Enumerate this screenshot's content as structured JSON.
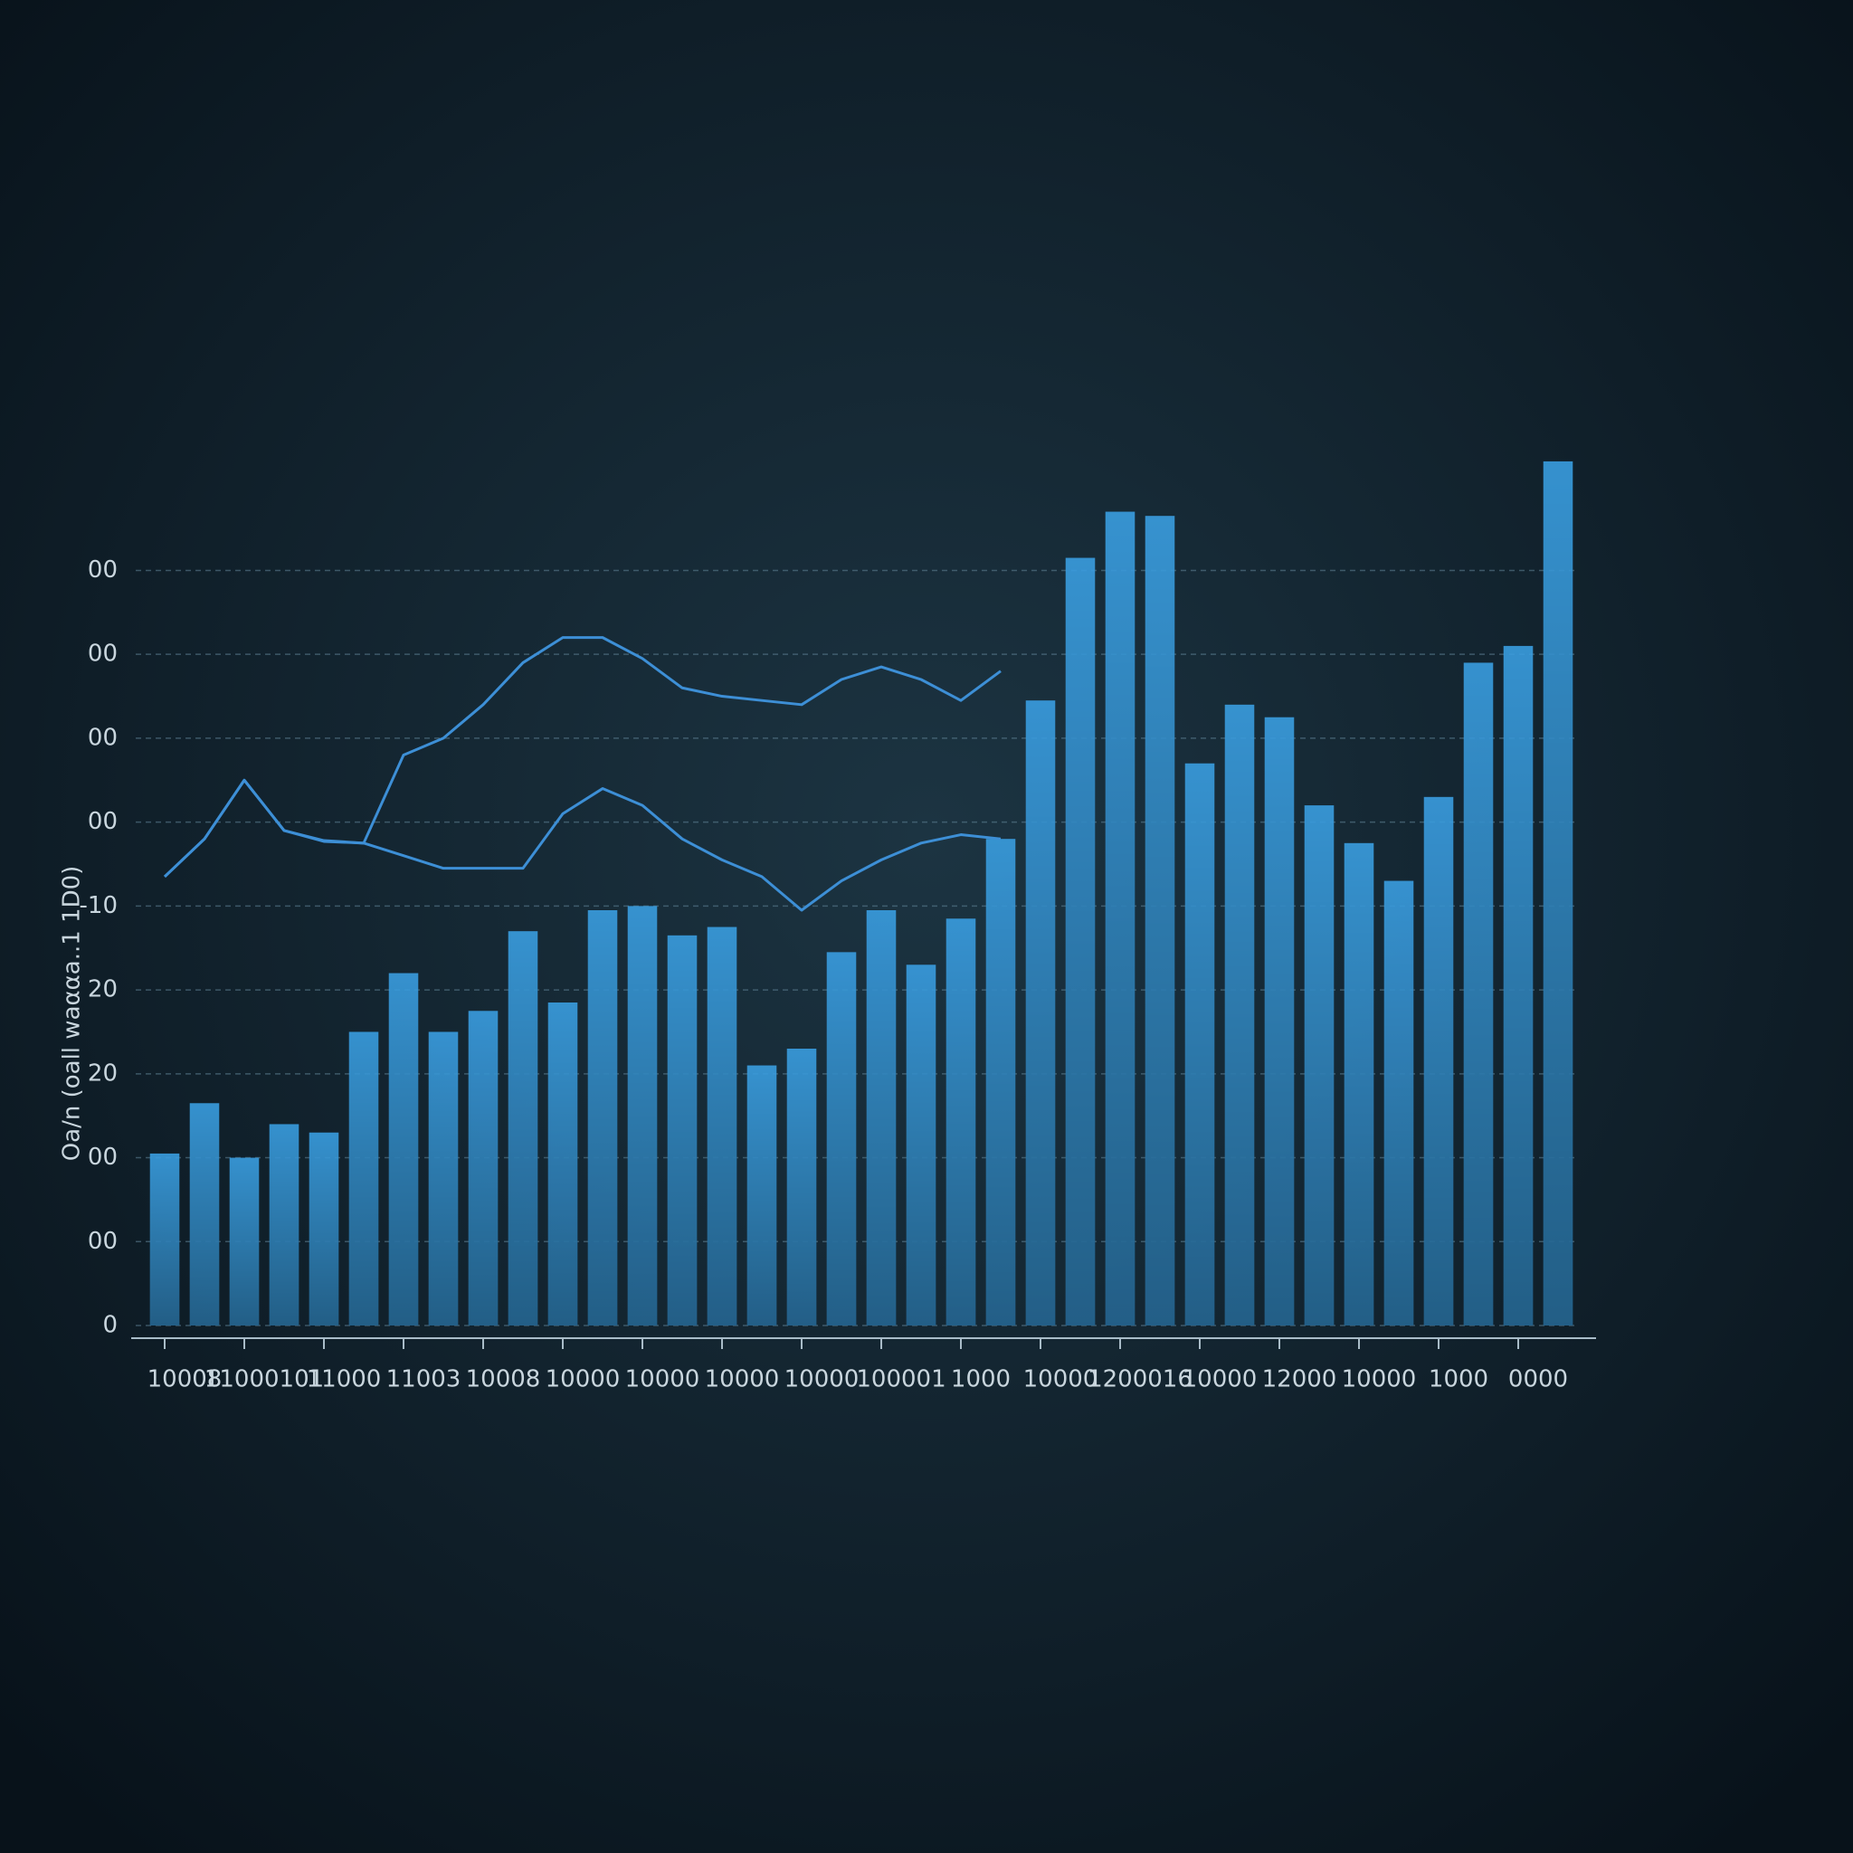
{
  "chart_data": {
    "type": "bar",
    "y_label": "Oa/n (oall waααa..1 1D0)",
    "categories": [
      "10008",
      null,
      "11000101",
      null,
      "11000",
      null,
      "11003",
      null,
      "10008",
      null,
      "10000",
      null,
      "10000",
      null,
      "10000",
      null,
      "10000",
      null,
      "100001",
      null,
      "1000",
      null,
      "10000",
      null,
      "1200016",
      null,
      "10000",
      null,
      "12000",
      null,
      "10000",
      null,
      "1000",
      null,
      "0000",
      null
    ],
    "series": [
      {
        "type": "bar",
        "color": "#3a9de0",
        "values": [
          205,
          265,
          200,
          240,
          230,
          350,
          420,
          350,
          375,
          470,
          385,
          495,
          500,
          465,
          475,
          310,
          330,
          445,
          495,
          430,
          485,
          580,
          745,
          915,
          970,
          965,
          670,
          740,
          725,
          620,
          575,
          530,
          630,
          790,
          810,
          1030
        ]
      },
      {
        "type": "line",
        "color": "#3d8fd6",
        "values": [
          535,
          580,
          650,
          590,
          578,
          575,
          680,
          700,
          740,
          790,
          820,
          820,
          795,
          760,
          750,
          745,
          740,
          770,
          785,
          770,
          745,
          780,
          null,
          null,
          null,
          null,
          null,
          null,
          null,
          null,
          null,
          null,
          null,
          null,
          null,
          null
        ]
      },
      {
        "type": "line",
        "color": "#3d8fd6",
        "values": [
          535,
          580,
          650,
          590,
          577,
          575,
          560,
          545,
          545,
          545,
          610,
          640,
          620,
          580,
          555,
          535,
          495,
          530,
          555,
          575,
          585,
          580,
          null,
          null,
          null,
          null,
          null,
          null,
          null,
          null,
          null,
          null,
          null,
          null,
          null,
          null
        ]
      }
    ],
    "ylim": [
      0,
      1100
    ],
    "yticks": [
      0,
      {
        "value": 100,
        "label": "00"
      },
      {
        "value": 200,
        "label": "00"
      },
      {
        "value": 300,
        "label": "20"
      },
      {
        "value": 400,
        "label": "20"
      },
      {
        "value": 500,
        "label": "-10"
      },
      {
        "value": 600,
        "label": "00"
      },
      {
        "value": 700,
        "label": "00"
      },
      {
        "value": 800,
        "label": "00"
      },
      {
        "value": 900,
        "label": "00"
      }
    ],
    "grid": true
  }
}
